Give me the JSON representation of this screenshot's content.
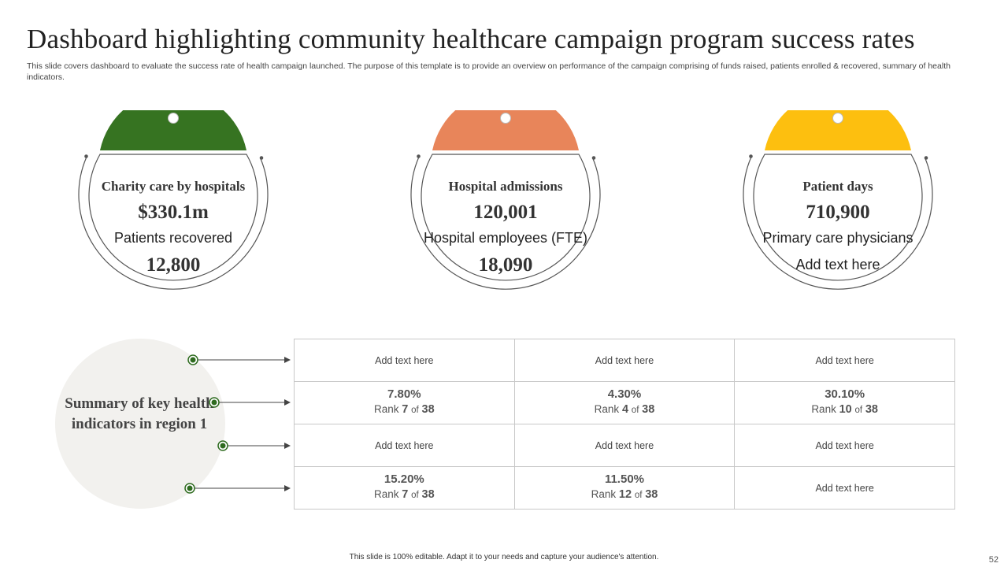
{
  "slide": {
    "title": "Dashboard highlighting community healthcare campaign program success rates",
    "description": "This slide covers dashboard to evaluate the  success rate of health campaign launched. The purpose of this template is to provide an overview on performance of the campaign comprising of funds raised, patients enrolled & recovered,  summary of health indicators.",
    "footer": "This slide is 100% editable. Adapt it to your needs and capture your audience's attention.",
    "page_number": "52"
  },
  "kpis": [
    {
      "label": "Charity care by hospitals",
      "value": "$330.1m",
      "sub_label": "Patients recovered",
      "sub_value": "12,800",
      "color": "#367321"
    },
    {
      "label": "Hospital admissions",
      "value": "120,001",
      "sub_label": "Hospital employees (FTE)",
      "sub_value": "18,090",
      "color": "#e8855a"
    },
    {
      "label": "Patient days",
      "value": "710,900",
      "sub_label": "Primary care physicians",
      "sub_value": "Add text here",
      "color": "#fdbf0f"
    }
  ],
  "summary": {
    "title": "Summary of key health indicators in region 1",
    "rank_prefix": "Rank",
    "rank_of": "of",
    "rows": [
      [
        {
          "text": "Add text here"
        },
        {
          "text": "Add text here"
        },
        {
          "text": "Add text here"
        }
      ],
      [
        {
          "pct": "7.80%",
          "rank": "7",
          "total": "38"
        },
        {
          "pct": "4.30%",
          "rank": "4",
          "total": "38"
        },
        {
          "pct": "30.10%",
          "rank": "10",
          "total": "38"
        }
      ],
      [
        {
          "text": "Add text here"
        },
        {
          "text": "Add text here"
        },
        {
          "text": "Add text here"
        }
      ],
      [
        {
          "pct": "15.20%",
          "rank": "7",
          "total": "38"
        },
        {
          "pct": "11.50%",
          "rank": "12",
          "total": "38"
        },
        {
          "text": "Add text here"
        }
      ]
    ]
  },
  "colors": {
    "accent_green": "#2e6b1f",
    "summary_bg": "#f2f1ee",
    "border": "#c8c8c8"
  }
}
